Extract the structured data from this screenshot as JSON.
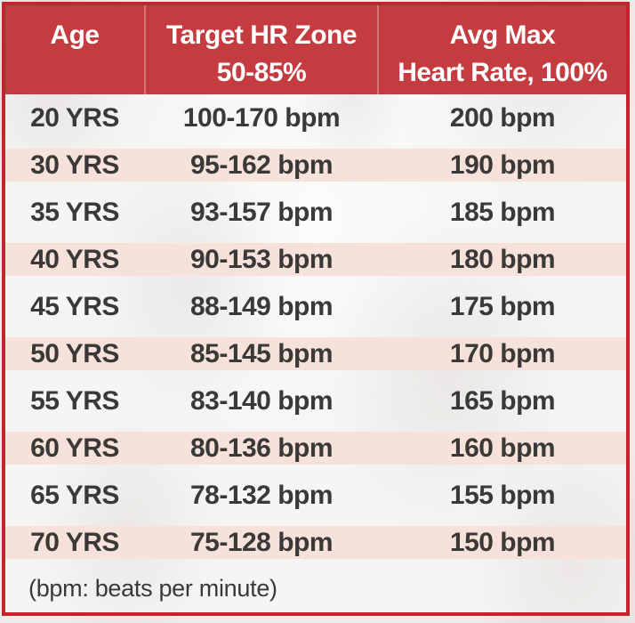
{
  "table": {
    "header": {
      "age": "Age",
      "zone_line1": "Target HR Zone",
      "zone_line2": "50-85%",
      "max_line1": "Avg Max",
      "max_line2": "Heart Rate, 100%"
    },
    "rows": [
      {
        "age": "20 YRS",
        "zone": "100-170 bpm",
        "max": "200 bpm"
      },
      {
        "age": "30 YRS",
        "zone": "95-162 bpm",
        "max": "190 bpm"
      },
      {
        "age": "35 YRS",
        "zone": "93-157 bpm",
        "max": "185 bpm"
      },
      {
        "age": "40 YRS",
        "zone": "90-153 bpm",
        "max": "180 bpm"
      },
      {
        "age": "45 YRS",
        "zone": "88-149 bpm",
        "max": "175 bpm"
      },
      {
        "age": "50 YRS",
        "zone": "85-145 bpm",
        "max": "170 bpm"
      },
      {
        "age": "55 YRS",
        "zone": "83-140 bpm",
        "max": "165 bpm"
      },
      {
        "age": "60 YRS",
        "zone": "80-136 bpm",
        "max": "160 bpm"
      },
      {
        "age": "65 YRS",
        "zone": "78-132 bpm",
        "max": "155 bpm"
      },
      {
        "age": "70 YRS",
        "zone": "75-128 bpm",
        "max": "150 bpm"
      }
    ],
    "footnote": "(bpm: beats per minute)"
  },
  "colors": {
    "header_bg": "#c43b40",
    "header_text": "#ffffff",
    "header_divider": "#d3767a",
    "border": "#c1262e",
    "alt_row_bg": "#f6e2da",
    "body_text": "#3b3937"
  },
  "chart_data": {
    "type": "table",
    "title": "Target Heart Rate Zones by Age",
    "columns": [
      "Age",
      "Target HR Zone 50-85%",
      "Avg Max Heart Rate, 100%"
    ],
    "rows": [
      [
        "20 YRS",
        "100-170 bpm",
        "200 bpm"
      ],
      [
        "30 YRS",
        "95-162 bpm",
        "190 bpm"
      ],
      [
        "35 YRS",
        "93-157 bpm",
        "185 bpm"
      ],
      [
        "40 YRS",
        "90-153 bpm",
        "180 bpm"
      ],
      [
        "45 YRS",
        "88-149 bpm",
        "175 bpm"
      ],
      [
        "50 YRS",
        "85-145 bpm",
        "170 bpm"
      ],
      [
        "55 YRS",
        "83-140 bpm",
        "165 bpm"
      ],
      [
        "60 YRS",
        "80-136 bpm",
        "160 bpm"
      ],
      [
        "65 YRS",
        "78-132 bpm",
        "155 bpm"
      ],
      [
        "70 YRS",
        "75-128 bpm",
        "150 bpm"
      ]
    ],
    "footnote": "(bpm: beats per minute)",
    "layout": {
      "alternating_row_highlight": true,
      "header_position": "top"
    }
  }
}
